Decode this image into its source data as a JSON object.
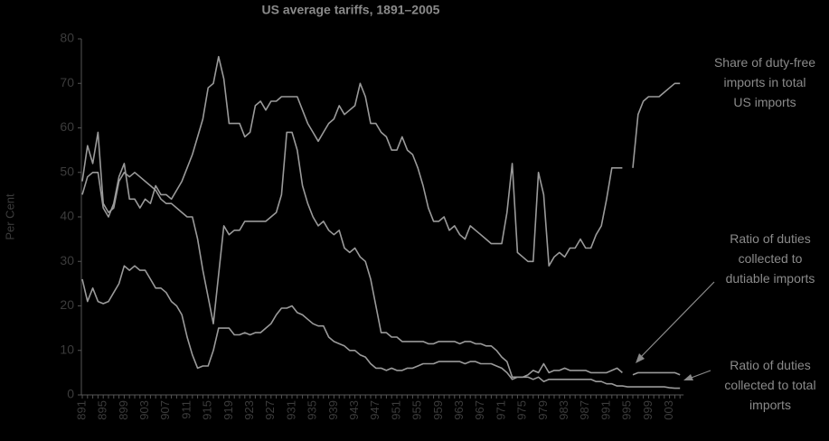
{
  "chart_data": {
    "type": "line",
    "title": "US average tariffs, 1891–2005",
    "y_label": "Per Cent",
    "categories": [
      "891",
      null,
      null,
      null,
      "895",
      null,
      null,
      null,
      "899",
      null,
      null,
      null,
      "903",
      null,
      null,
      null,
      "907",
      null,
      null,
      null,
      "911",
      null,
      null,
      null,
      "915",
      null,
      null,
      null,
      "919",
      null,
      null,
      null,
      "923",
      null,
      null,
      null,
      "927",
      null,
      null,
      null,
      "931",
      null,
      null,
      null,
      "935",
      null,
      null,
      null,
      "939",
      null,
      null,
      null,
      "943",
      null,
      null,
      null,
      "947",
      null,
      null,
      null,
      "951",
      null,
      null,
      null,
      "955",
      null,
      null,
      null,
      "959",
      null,
      null,
      null,
      "963",
      null,
      null,
      null,
      "967",
      null,
      null,
      null,
      "971",
      null,
      null,
      null,
      "975",
      null,
      null,
      null,
      "979",
      null,
      null,
      null,
      "983",
      null,
      null,
      null,
      "987",
      null,
      null,
      null,
      "991",
      null,
      null,
      null,
      "995",
      null,
      null,
      null,
      "999",
      null,
      null,
      null,
      "003",
      null,
      null
    ],
    "ylim": [
      0,
      80
    ],
    "yticks": [
      0,
      10,
      20,
      30,
      40,
      50,
      60,
      70,
      80
    ],
    "series": [
      {
        "name": "Share of duty-free imports in total US imports",
        "color": "#9a9a9a",
        "values": [
          45,
          49,
          50,
          50,
          42,
          40,
          43,
          49,
          52,
          44,
          44,
          42,
          44,
          43,
          47,
          45,
          45,
          44,
          46,
          48,
          51,
          54,
          58,
          62,
          69,
          70,
          76,
          71,
          61,
          61,
          61,
          58,
          59,
          65,
          66,
          64,
          66,
          66,
          67,
          67,
          67,
          67,
          64,
          61,
          59,
          57,
          59,
          61,
          62,
          65,
          63,
          64,
          65,
          70,
          67,
          61,
          61,
          59,
          58,
          55,
          55,
          58,
          55,
          54,
          51,
          47,
          42,
          39,
          39,
          40,
          37,
          38,
          36,
          35,
          38,
          37,
          36,
          35,
          34,
          34,
          34,
          41,
          52,
          32,
          31,
          30,
          30,
          50,
          45,
          29,
          31,
          32,
          31,
          33,
          33,
          35,
          33,
          33,
          36,
          38,
          44,
          51,
          51,
          51,
          null,
          51,
          63,
          66,
          67,
          67,
          67,
          68,
          69,
          70,
          70
        ]
      },
      {
        "name": "Ratio of duties collected to dutiable imports",
        "color": "#9a9a9a",
        "values": [
          48,
          56,
          52,
          59,
          43,
          41,
          42,
          48,
          50,
          49,
          50,
          49,
          48,
          47,
          46,
          44,
          43,
          43,
          42,
          41,
          40,
          40,
          35,
          28,
          22,
          16,
          27,
          38,
          36,
          37,
          37,
          39,
          39,
          39,
          39,
          39,
          40,
          41,
          45,
          59,
          59,
          55,
          47,
          43,
          40,
          38,
          39,
          37,
          36,
          37,
          33,
          32,
          33,
          31,
          30,
          26,
          20,
          14,
          14,
          13,
          13,
          12,
          12,
          12,
          12,
          12,
          11.5,
          11.5,
          12,
          12,
          12,
          12,
          11.5,
          12,
          12,
          11.5,
          11.5,
          11,
          11,
          10,
          8.5,
          7.5,
          4,
          4,
          4,
          4.5,
          5.5,
          5,
          7,
          5,
          5.5,
          5.5,
          6,
          5.5,
          5.5,
          5.5,
          5.5,
          5,
          5,
          5,
          5,
          5.5,
          6,
          5,
          null,
          4.5,
          5,
          5,
          5,
          5,
          5,
          5,
          5,
          5,
          4.5
        ]
      },
      {
        "name": "Ratio of duties collected to total imports",
        "color": "#9a9a9a",
        "values": [
          26,
          21,
          24,
          21,
          20.5,
          21,
          23,
          25,
          29,
          28,
          29,
          28,
          28,
          26,
          24,
          24,
          23,
          21,
          20,
          18,
          13,
          9,
          6,
          6.5,
          6.5,
          10,
          15,
          15,
          15,
          13.5,
          13.5,
          14,
          13.5,
          14,
          14,
          15,
          16,
          18,
          19.5,
          19.5,
          20,
          18.5,
          18,
          17,
          16,
          15.5,
          15.5,
          13,
          12,
          11.5,
          11,
          10,
          10,
          9,
          8.5,
          7,
          6,
          6,
          5.5,
          6,
          5.5,
          5.5,
          6,
          6,
          6.5,
          7,
          7,
          7,
          7.5,
          7.5,
          7.5,
          7.5,
          7.5,
          7,
          7.5,
          7.5,
          7,
          7,
          7,
          6.5,
          6,
          5,
          3.5,
          4,
          4,
          4,
          3.5,
          4,
          3,
          3.5,
          3.5,
          3.5,
          3.5,
          3.5,
          3.5,
          3.5,
          3.5,
          3.5,
          3,
          3,
          2.5,
          2.5,
          2,
          2,
          1.8,
          1.8,
          1.8,
          1.8,
          1.8,
          1.8,
          1.8,
          1.8,
          1.6,
          1.5,
          1.5
        ]
      }
    ]
  }
}
